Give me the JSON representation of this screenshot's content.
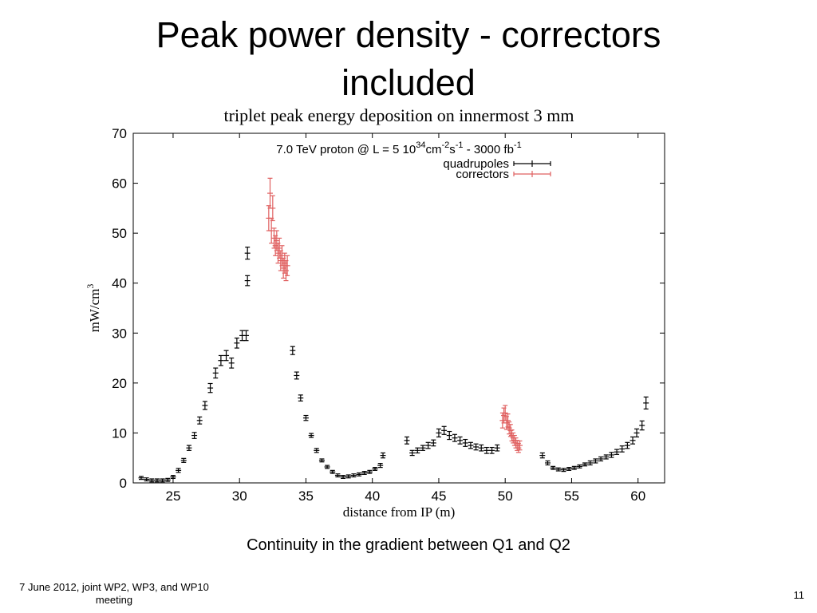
{
  "slide": {
    "title_line1": "Peak power density - correctors",
    "title_line2": "included",
    "caption": "Continuity in the gradient between Q1 and Q2",
    "footer_left": "7 June 2012, joint WP2, WP3, and WP10 meeting",
    "page_number": "11"
  },
  "chart_data": {
    "type": "scatter",
    "title": "triplet peak energy deposition on innermost 3 mm",
    "annotation": {
      "base": "7.0 TeV proton @ L = 5 10",
      "exp1": "34",
      "mid": "cm",
      "exp2": "-2",
      "s": "s",
      "exp3": "-1",
      "tail": " - 3000 fb",
      "exp4": "-1"
    },
    "xlabel": "distance from IP (m)",
    "ylabel": {
      "base": "mW/cm",
      "sup": "3"
    },
    "xlim": [
      22,
      62
    ],
    "ylim": [
      0,
      70
    ],
    "xticks": [
      25,
      30,
      35,
      40,
      45,
      50,
      55,
      60
    ],
    "yticks": [
      0,
      10,
      20,
      30,
      40,
      50,
      60,
      70
    ],
    "legend_position": "top-right",
    "colors": {
      "quadrupoles": "#000000",
      "correctors": "#e06060"
    },
    "series": [
      {
        "name": "quadrupoles",
        "x": [
          22.6,
          23.0,
          23.4,
          23.8,
          24.2,
          24.6,
          25.0,
          25.4,
          25.8,
          26.2,
          26.6,
          27.0,
          27.4,
          27.8,
          28.2,
          28.6,
          29.0,
          29.4,
          29.8,
          30.2,
          30.5,
          30.6,
          30.6,
          34.0,
          34.3,
          34.6,
          35.0,
          35.4,
          35.8,
          36.2,
          36.6,
          37.0,
          37.4,
          37.8,
          38.2,
          38.6,
          39.0,
          39.4,
          39.8,
          40.2,
          40.6,
          40.8,
          42.6,
          43.0,
          43.4,
          43.8,
          44.2,
          44.6,
          45.0,
          45.4,
          45.8,
          46.2,
          46.6,
          47.0,
          47.4,
          47.8,
          48.2,
          48.6,
          49.0,
          49.4,
          52.8,
          53.2,
          53.6,
          54.0,
          54.4,
          54.8,
          55.2,
          55.6,
          56.0,
          56.4,
          56.8,
          57.2,
          57.6,
          58.0,
          58.4,
          58.8,
          59.2,
          59.6,
          59.9,
          60.3,
          60.6
        ],
        "y": [
          1.0,
          0.7,
          0.5,
          0.5,
          0.5,
          0.6,
          1.2,
          2.5,
          4.5,
          7.0,
          9.5,
          12.5,
          15.5,
          19.0,
          22.0,
          24.5,
          25.5,
          24.0,
          28.0,
          29.5,
          29.5,
          40.5,
          46.0,
          26.5,
          21.5,
          17.0,
          13.0,
          9.5,
          6.5,
          4.5,
          3.2,
          2.2,
          1.5,
          1.2,
          1.3,
          1.5,
          1.7,
          2.0,
          2.2,
          2.8,
          3.5,
          5.5,
          8.5,
          6.0,
          6.5,
          7.0,
          7.5,
          8.0,
          10.0,
          10.5,
          9.5,
          9.0,
          8.5,
          8.0,
          7.5,
          7.2,
          7.0,
          6.5,
          6.5,
          7.0,
          5.5,
          4.0,
          3.0,
          2.7,
          2.6,
          2.8,
          3.0,
          3.3,
          3.7,
          4.0,
          4.4,
          4.8,
          5.2,
          5.6,
          6.2,
          6.8,
          7.5,
          8.5,
          10.0,
          11.5,
          16.0
        ],
        "err": [
          0.3,
          0.3,
          0.3,
          0.3,
          0.3,
          0.3,
          0.3,
          0.4,
          0.4,
          0.5,
          0.6,
          0.7,
          0.8,
          0.9,
          1.0,
          1.0,
          1.0,
          1.0,
          1.0,
          1.0,
          1.0,
          1.0,
          1.2,
          0.8,
          0.7,
          0.6,
          0.5,
          0.4,
          0.4,
          0.3,
          0.3,
          0.3,
          0.3,
          0.3,
          0.3,
          0.3,
          0.3,
          0.3,
          0.3,
          0.3,
          0.4,
          0.5,
          0.7,
          0.5,
          0.5,
          0.5,
          0.6,
          0.6,
          0.8,
          0.8,
          0.8,
          0.7,
          0.7,
          0.7,
          0.6,
          0.6,
          0.6,
          0.6,
          0.6,
          0.6,
          0.5,
          0.4,
          0.3,
          0.3,
          0.3,
          0.3,
          0.3,
          0.3,
          0.3,
          0.4,
          0.4,
          0.4,
          0.4,
          0.5,
          0.5,
          0.6,
          0.6,
          0.7,
          0.8,
          0.9,
          1.2
        ]
      },
      {
        "name": "correctors",
        "x": [
          32.2,
          32.3,
          32.4,
          32.5,
          32.6,
          32.7,
          32.8,
          32.9,
          33.0,
          33.1,
          33.2,
          33.3,
          33.4,
          33.5,
          33.6,
          49.8,
          49.9,
          50.0,
          50.1,
          50.2,
          50.3,
          50.4,
          50.5,
          50.6,
          50.7,
          50.8,
          50.9,
          51.0,
          51.1
        ],
        "y": [
          53.0,
          58.0,
          50.5,
          55.0,
          49.0,
          47.5,
          48.5,
          46.0,
          47.0,
          44.5,
          45.5,
          43.0,
          44.0,
          42.5,
          43.5,
          12.5,
          13.5,
          14.0,
          12.0,
          12.5,
          11.0,
          10.5,
          9.5,
          9.0,
          8.5,
          8.0,
          7.5,
          7.0,
          7.5
        ],
        "err": [
          2.5,
          3.0,
          2.5,
          2.5,
          2.0,
          2.0,
          2.0,
          2.0,
          2.0,
          2.0,
          2.0,
          2.0,
          2.0,
          2.0,
          2.0,
          1.5,
          1.5,
          1.5,
          1.3,
          1.3,
          1.2,
          1.2,
          1.1,
          1.0,
          1.0,
          1.0,
          1.0,
          0.9,
          0.9
        ]
      }
    ]
  }
}
